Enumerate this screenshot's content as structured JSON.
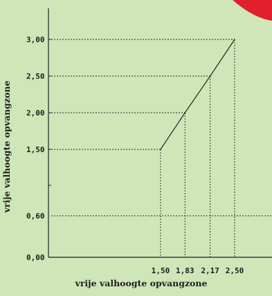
{
  "colors": {
    "background": "#cfe6b9",
    "axis": "#222222",
    "line": "#222222",
    "badge": "#e0202c"
  },
  "chart_data": {
    "type": "line",
    "title": "",
    "xlabel": "vrije valhoogte opvangzone",
    "ylabel": "vrije valhoogte opvangzone",
    "xlim": [
      1.0,
      2.6
    ],
    "ylim": [
      0.0,
      3.0
    ],
    "grid": false,
    "legend": "none",
    "x": [
      1.5,
      1.83,
      2.17,
      2.5
    ],
    "y": [
      1.5,
      2.0,
      2.5,
      3.0
    ],
    "x_ticks": [
      {
        "value": 1.5,
        "label": "1,50"
      },
      {
        "value": 1.83,
        "label": "1,83"
      },
      {
        "value": 2.17,
        "label": "2,17"
      },
      {
        "value": 2.5,
        "label": "2,50"
      }
    ],
    "y_ticks": [
      {
        "value": 0.0,
        "label": "0,00"
      },
      {
        "value": 0.6,
        "label": "0,60"
      },
      {
        "value": 1.5,
        "label": "1,50"
      },
      {
        "value": 2.0,
        "label": "2,00"
      },
      {
        "value": 2.5,
        "label": "2,50"
      },
      {
        "value": 3.0,
        "label": "3,00"
      }
    ],
    "reference_line_y": 0.6
  }
}
